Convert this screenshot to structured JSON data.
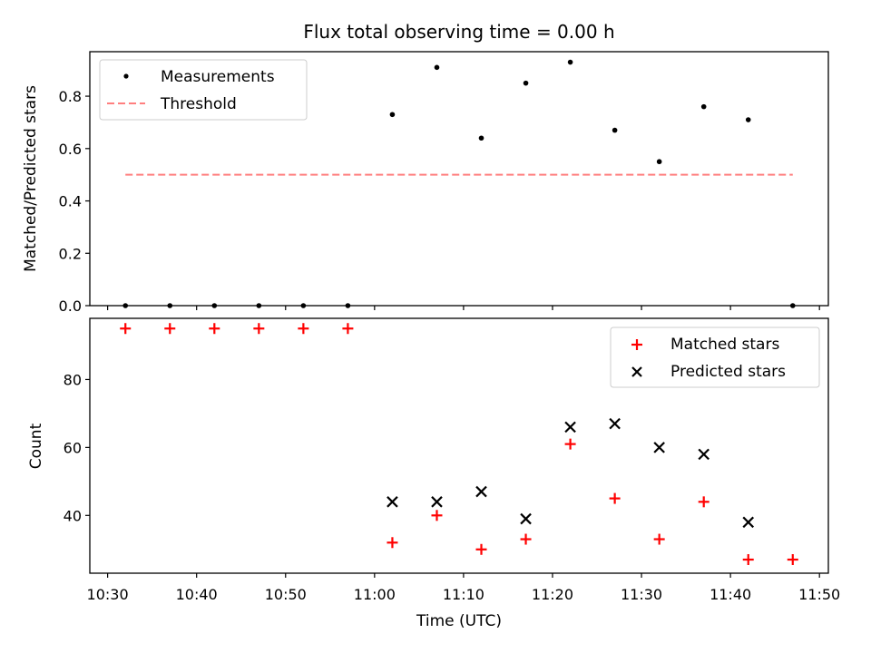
{
  "chart_data": [
    {
      "type": "scatter",
      "title": "Flux total observing time = 0.00 h",
      "xlabel": "",
      "ylabel": "Matched/Predicted stars",
      "xlim": [
        "10:28",
        "11:51"
      ],
      "ylim": [
        0,
        0.97
      ],
      "yticks": [
        0.0,
        0.2,
        0.4,
        0.6,
        0.8
      ],
      "ytick_labels": [
        "0.0",
        "0.2",
        "0.4",
        "0.6",
        "0.8"
      ],
      "legend_position": "upper-left",
      "grid": false,
      "series": [
        {
          "name": "Measurements",
          "marker": "dot",
          "color": "#000000",
          "x": [
            "10:32",
            "10:37",
            "10:42",
            "10:47",
            "10:52",
            "10:57",
            "11:02",
            "11:07",
            "11:12",
            "11:17",
            "11:22",
            "11:27",
            "11:32",
            "11:37",
            "11:42",
            "11:47"
          ],
          "y": [
            0,
            0,
            0,
            0,
            0,
            0,
            0.73,
            0.91,
            0.64,
            0.85,
            0.93,
            0.67,
            0.55,
            0.76,
            0.71,
            0
          ]
        },
        {
          "name": "Threshold",
          "marker": "dashed-line",
          "color": "#ff7f7f",
          "x": [
            "10:32",
            "11:47"
          ],
          "y": [
            0.5,
            0.5
          ]
        }
      ]
    },
    {
      "type": "scatter",
      "title": "",
      "xlabel": "Time (UTC)",
      "ylabel": "Count",
      "xlim": [
        "10:28",
        "11:51"
      ],
      "ylim": [
        23,
        98
      ],
      "yticks": [
        40,
        60,
        80
      ],
      "ytick_labels": [
        "40",
        "60",
        "80"
      ],
      "xticks": [
        "10:30",
        "10:40",
        "10:50",
        "11:00",
        "11:10",
        "11:20",
        "11:30",
        "11:40",
        "11:50"
      ],
      "xtick_labels": [
        "10:30",
        "10:40",
        "10:50",
        "11:00",
        "11:10",
        "11:20",
        "11:30",
        "11:40",
        "11:50"
      ],
      "legend_position": "upper-right",
      "grid": false,
      "series": [
        {
          "name": "Matched stars",
          "marker": "plus",
          "color": "#ff0000",
          "x": [
            "10:32",
            "10:37",
            "10:42",
            "10:47",
            "10:52",
            "10:57",
            "11:02",
            "11:07",
            "11:12",
            "11:17",
            "11:22",
            "11:27",
            "11:32",
            "11:37",
            "11:42",
            "11:47"
          ],
          "y": [
            95,
            95,
            95,
            95,
            95,
            95,
            32,
            40,
            30,
            33,
            61,
            45,
            33,
            44,
            27,
            27
          ]
        },
        {
          "name": "Predicted stars",
          "marker": "x",
          "color": "#000000",
          "x": [
            "11:02",
            "11:07",
            "11:12",
            "11:17",
            "11:22",
            "11:27",
            "11:32",
            "11:37",
            "11:42"
          ],
          "y": [
            44,
            44,
            47,
            39,
            66,
            67,
            60,
            58,
            38
          ]
        }
      ]
    }
  ]
}
